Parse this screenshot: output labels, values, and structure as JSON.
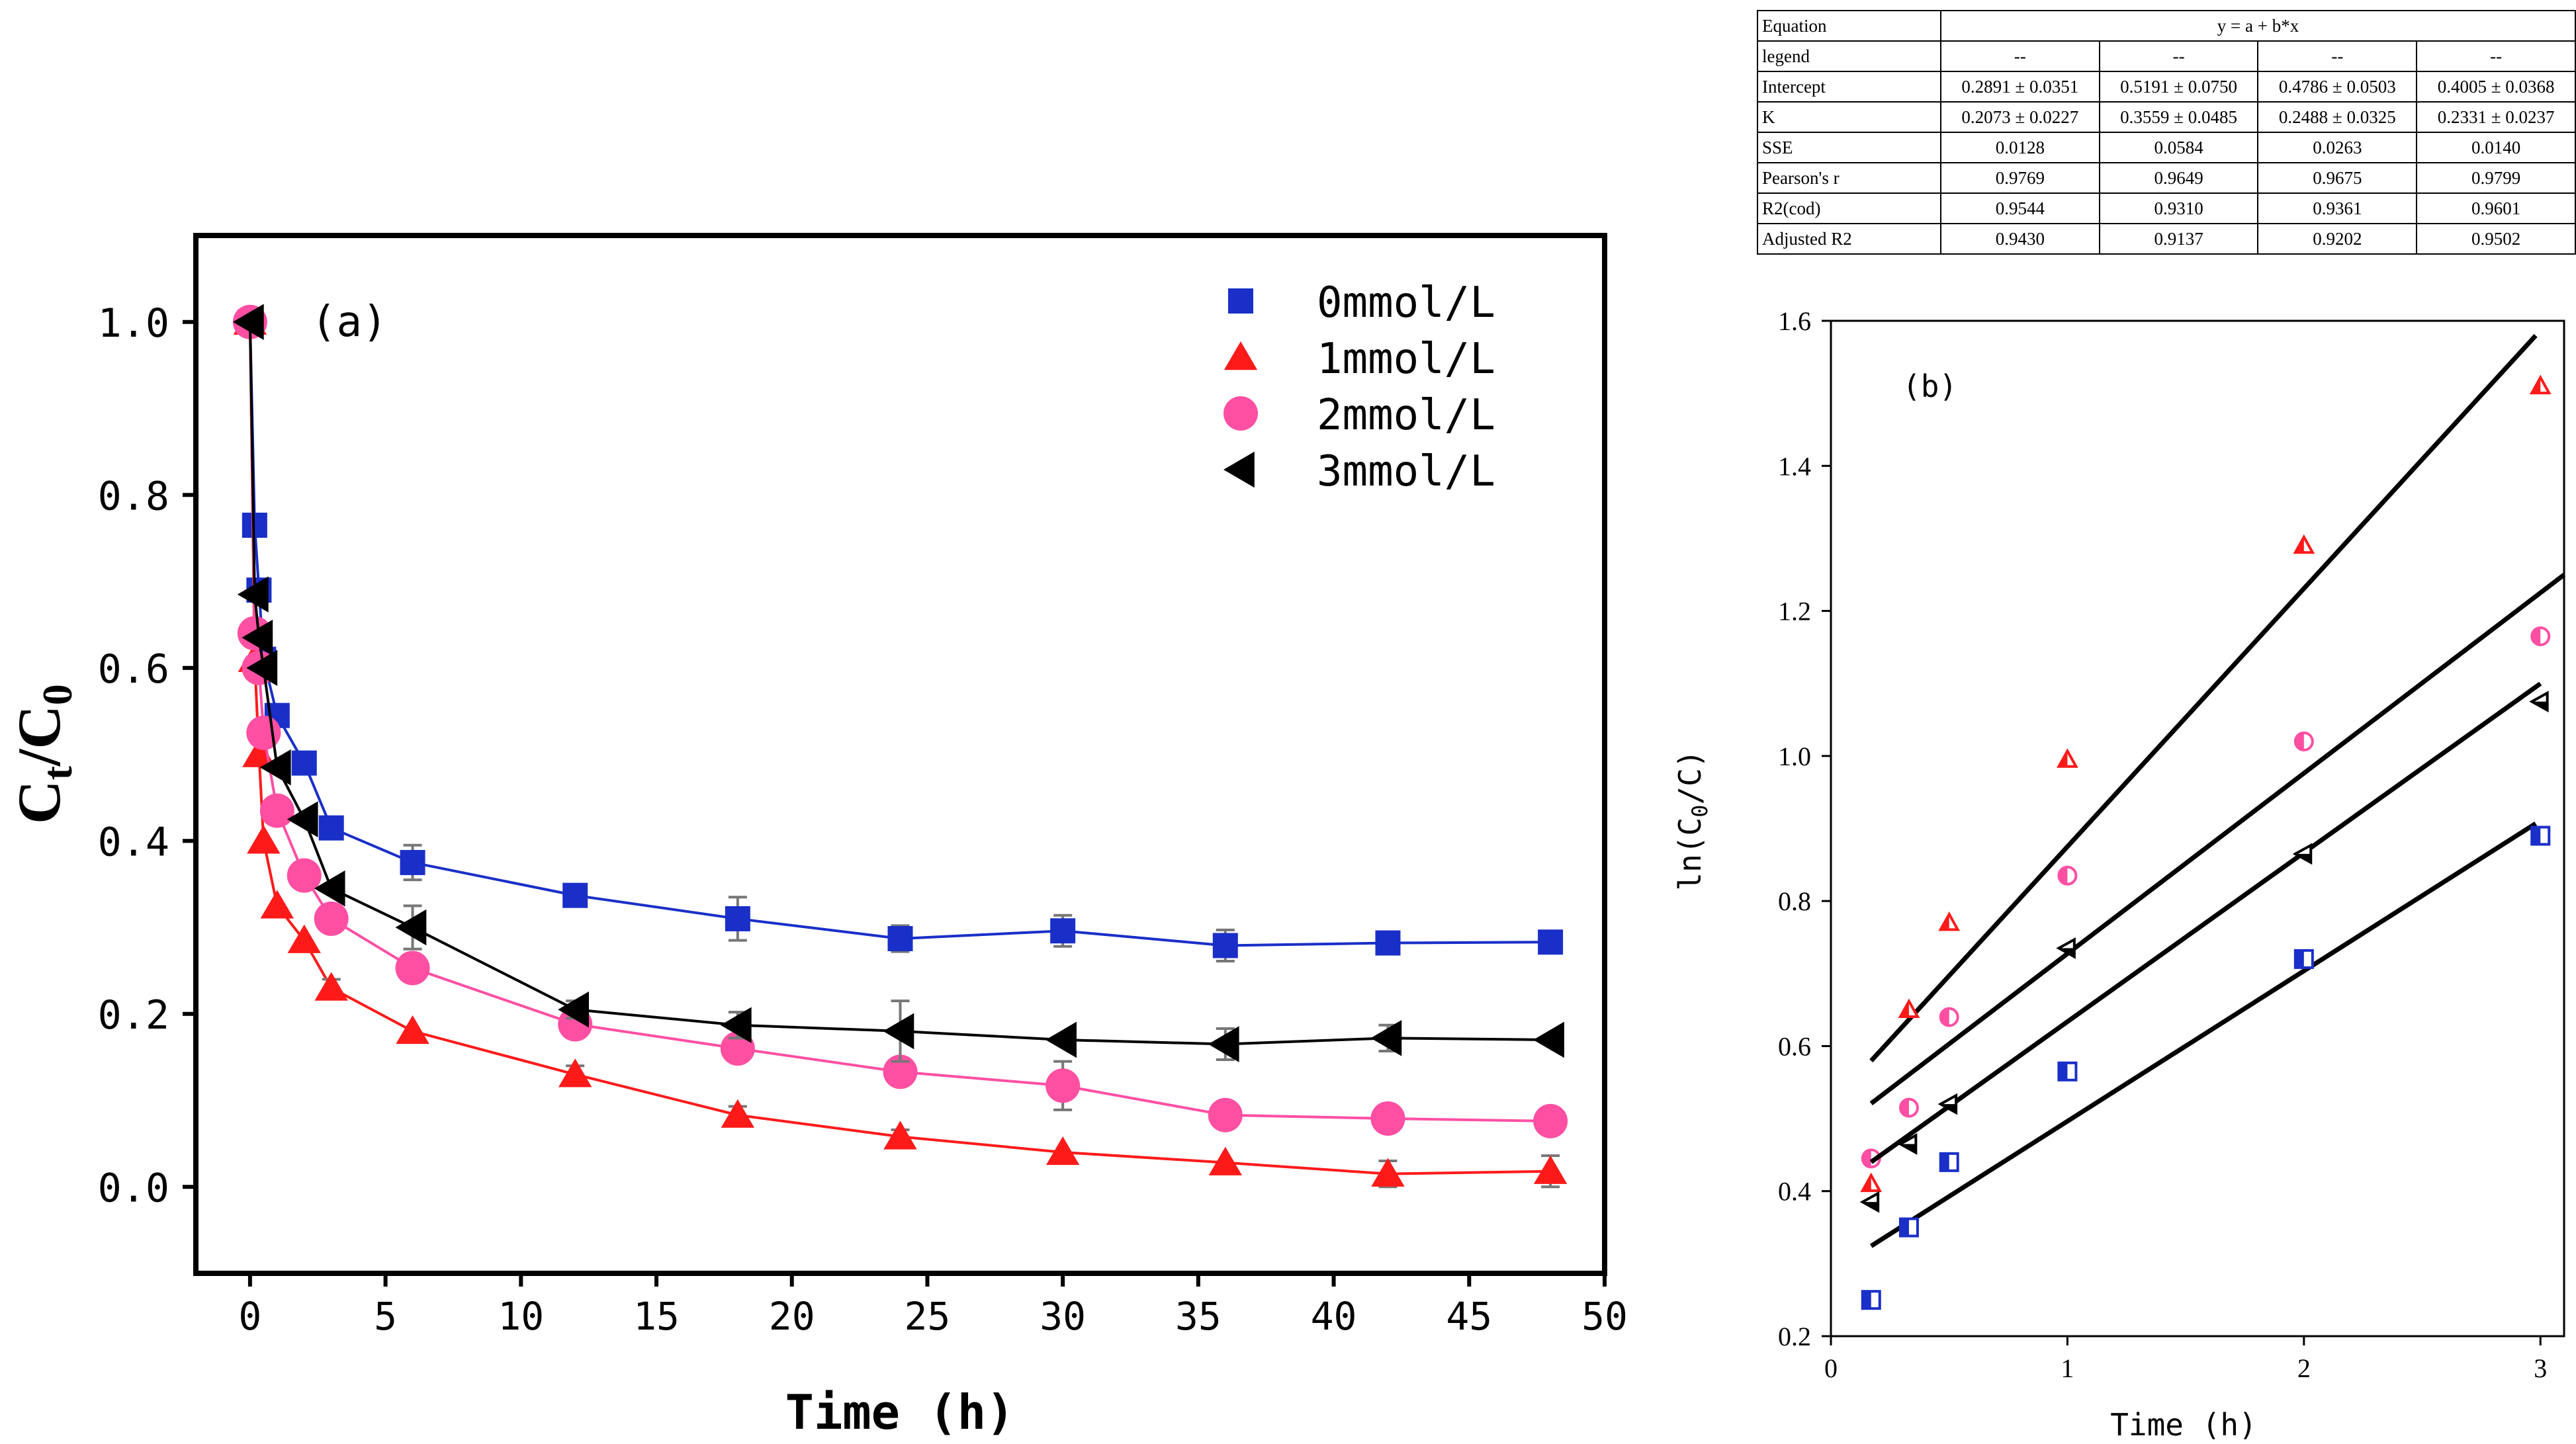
{
  "chart_data": [
    {
      "type": "line",
      "annotation": "(a)",
      "xlabel": "Time (h)",
      "ylabel": "Ct/C0",
      "xlim": [
        -2,
        50
      ],
      "ylim": [
        -0.1,
        1.1
      ],
      "xticks": [
        0,
        5,
        10,
        15,
        20,
        25,
        30,
        35,
        40,
        45,
        50
      ],
      "yticks": [
        0.0,
        0.2,
        0.4,
        0.6,
        0.8,
        1.0
      ],
      "legend_placement": "top-right",
      "series": [
        {
          "name": "0mmol/L",
          "color": "#1a2fc8",
          "marker": "square",
          "x": [
            0,
            0.17,
            0.33,
            0.5,
            1,
            2,
            3,
            6,
            12,
            18,
            24,
            30,
            36,
            42,
            48
          ],
          "y": [
            1.0,
            0.765,
            0.69,
            0.61,
            0.545,
            0.49,
            0.415,
            0.375,
            0.337,
            0.31,
            0.287,
            0.296,
            0.279,
            0.282,
            0.283
          ],
          "err": [
            0,
            0,
            0,
            0,
            0,
            0,
            0,
            0.02,
            0,
            0.025,
            0.015,
            0.018,
            0.018,
            0,
            0
          ]
        },
        {
          "name": "1mmol/L",
          "color": "#ff1a1a",
          "marker": "triangle-up",
          "x": [
            0,
            0.17,
            0.33,
            0.5,
            1,
            2,
            3,
            6,
            12,
            18,
            24,
            30,
            36,
            42,
            48
          ],
          "y": [
            1.0,
            0.61,
            0.5,
            0.4,
            0.325,
            0.285,
            0.23,
            0.18,
            0.13,
            0.083,
            0.058,
            0.04,
            0.028,
            0.015,
            0.018
          ],
          "err": [
            0,
            0,
            0,
            0,
            0,
            0,
            0.01,
            0,
            0.01,
            0.01,
            0.008,
            0,
            0,
            0.015,
            0.018
          ]
        },
        {
          "name": "2mmol/L",
          "color": "#ff4fa3",
          "marker": "circle",
          "x": [
            0,
            0.17,
            0.33,
            0.5,
            1,
            2,
            3,
            6,
            12,
            18,
            24,
            30,
            36,
            42,
            48
          ],
          "y": [
            1.0,
            0.64,
            0.6,
            0.525,
            0.435,
            0.36,
            0.31,
            0.253,
            0.188,
            0.16,
            0.133,
            0.117,
            0.083,
            0.079,
            0.076
          ],
          "err": [
            0,
            0,
            0,
            0,
            0,
            0,
            0,
            0,
            0,
            0,
            0,
            0.028,
            0,
            0,
            0
          ]
        },
        {
          "name": "3mmol/L",
          "color": "#000000",
          "marker": "triangle-left",
          "x": [
            0,
            0.17,
            0.33,
            0.5,
            1,
            2,
            3,
            6,
            12,
            18,
            24,
            30,
            36,
            42,
            48
          ],
          "y": [
            1.0,
            0.685,
            0.635,
            0.6,
            0.485,
            0.425,
            0.345,
            0.3,
            0.205,
            0.187,
            0.18,
            0.17,
            0.165,
            0.172,
            0.17
          ],
          "err": [
            0,
            0,
            0,
            0,
            0,
            0,
            0,
            0.025,
            0.01,
            0.015,
            0.035,
            0,
            0.018,
            0.015,
            0
          ]
        }
      ]
    },
    {
      "type": "scatter",
      "annotation": "(b)",
      "xlabel": "Time (h)",
      "ylabel": "ln(C0/C)",
      "xlim": [
        0,
        3.1
      ],
      "ylim": [
        0.2,
        1.6
      ],
      "xticks": [
        0,
        1,
        2,
        3
      ],
      "yticks": [
        0.2,
        0.4,
        0.6,
        0.8,
        1.0,
        1.2,
        1.4,
        1.6
      ],
      "series": [
        {
          "color": "#1a2fc8",
          "marker": "half-square",
          "x": [
            0.17,
            0.33,
            0.5,
            1,
            2,
            3
          ],
          "y": [
            0.25,
            0.35,
            0.44,
            0.565,
            0.72,
            0.89
          ],
          "fit": {
            "intercept": 0.2891,
            "slope": 0.2073,
            "x_range": [
              0.17,
              2.98
            ]
          }
        },
        {
          "color": "#ff1a1a",
          "marker": "half-triangle-up",
          "x": [
            0.17,
            0.33,
            0.5,
            1,
            2,
            3
          ],
          "y": [
            0.41,
            0.65,
            0.77,
            0.995,
            1.29,
            1.51
          ],
          "fit": {
            "intercept": 0.5191,
            "slope": 0.3559,
            "x_range": [
              0.17,
              2.98
            ]
          }
        },
        {
          "color": "#ff4fa3",
          "marker": "half-circle",
          "x": [
            0.17,
            0.33,
            0.5,
            1,
            2,
            3
          ],
          "y": [
            0.445,
            0.515,
            0.64,
            0.835,
            1.02,
            1.165
          ],
          "fit": {
            "intercept": 0.4786,
            "slope": 0.2488,
            "x_range": [
              0.17,
              3.1
            ]
          }
        },
        {
          "color": "#000000",
          "marker": "half-triangle-left",
          "x": [
            0.17,
            0.33,
            0.5,
            1,
            2,
            3
          ],
          "y": [
            0.385,
            0.465,
            0.52,
            0.735,
            0.865,
            1.075
          ],
          "fit": {
            "intercept": 0.4005,
            "slope": 0.2331,
            "x_range": [
              0.17,
              3.0
            ]
          }
        }
      ]
    }
  ],
  "fit_table": {
    "equation_label": "Equation",
    "equation": "y = a + b*x",
    "rows": [
      {
        "label": "legend",
        "values": [
          "--",
          "--",
          "--",
          "--"
        ]
      },
      {
        "label": "Intercept",
        "values": [
          "0.2891 ± 0.0351",
          "0.5191 ± 0.0750",
          "0.4786 ± 0.0503",
          "0.4005 ± 0.0368"
        ]
      },
      {
        "label": "K",
        "values": [
          "0.2073 ± 0.0227",
          "0.3559 ± 0.0485",
          "0.2488 ± 0.0325",
          "0.2331 ± 0.0237"
        ]
      },
      {
        "label": "SSE",
        "values": [
          "0.0128",
          "0.0584",
          "0.0263",
          "0.0140"
        ]
      },
      {
        "label": "Pearson's r",
        "values": [
          "0.9769",
          "0.9649",
          "0.9675",
          "0.9799"
        ]
      },
      {
        "label": "R2(cod)",
        "values": [
          "0.9544",
          "0.9310",
          "0.9361",
          "0.9601"
        ]
      },
      {
        "label": "Adjusted R2",
        "values": [
          "0.9430",
          "0.9137",
          "0.9202",
          "0.9502"
        ]
      }
    ]
  }
}
